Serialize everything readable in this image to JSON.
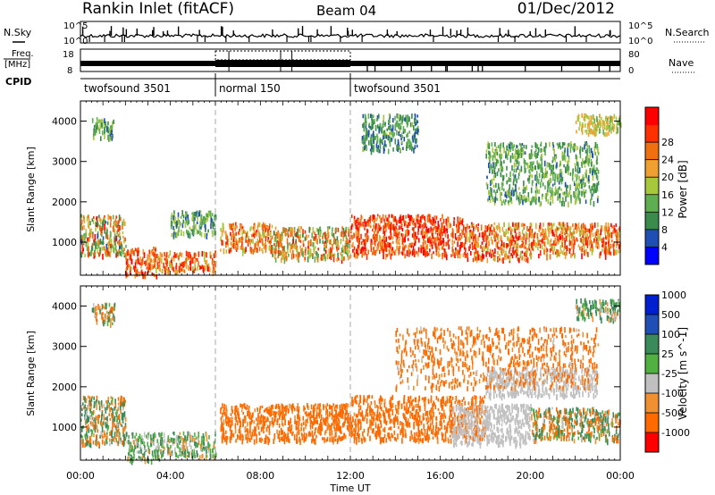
{
  "header": {
    "station": "Rankin Inlet (fitACF)",
    "beam": "Beam 04",
    "date": "01/Dec/2012"
  },
  "summary": {
    "nsky_label": "N.Sky",
    "nsearch_label": "N.Search",
    "count_ticks": [
      "10^5",
      "10^0"
    ],
    "freq_label_1": "Freq.",
    "freq_label_2": "[MHz]",
    "freq_ticks": [
      "18",
      "8"
    ],
    "nave_label": "Nave",
    "nave_ticks": [
      "80",
      "0"
    ],
    "cpid_label": "CPID",
    "cpid_segments": [
      {
        "label": "twofsound 3501",
        "start_hour": 0,
        "end_hour": 6
      },
      {
        "label": "normal 150",
        "start_hour": 6,
        "end_hour": 12
      },
      {
        "label": "twofsound 3501",
        "start_hour": 12,
        "end_hour": 24
      }
    ],
    "freq_high_mhz": 12,
    "freq_low_mhz": 10,
    "nave_normal": 36
  },
  "colors": {
    "power": [
      "#0000ff",
      "#1f4fb4",
      "#3b8c4c",
      "#5fae4f",
      "#a8c83c",
      "#f0a030",
      "#f07010",
      "#ff3000",
      "#ff0000"
    ],
    "velocity": [
      "#ff0000",
      "#ff6a00",
      "#f09030",
      "#c0c0c0",
      "#50b040",
      "#3a8a5a",
      "#1f4fb4",
      "#0020d0"
    ],
    "ground_scatter": "#b8b8b8"
  },
  "chart_data": [
    {
      "type": "heatmap",
      "name": "power",
      "xlabel": "",
      "ylabel": "Slant Range [km]",
      "xlim": [
        0,
        24
      ],
      "ylim": [
        180,
        4500
      ],
      "yticks": [
        1000,
        2000,
        3000,
        4000
      ],
      "colorbar_label": "Power [dB]",
      "colorbar_ticks": [
        4,
        8,
        12,
        16,
        20,
        24,
        28
      ],
      "colorbar_range": [
        0,
        30
      ],
      "scatter_regions": [
        {
          "x": [
            0.0,
            2.0
          ],
          "y": [
            700,
            1700
          ],
          "v": [
            6,
            28
          ]
        },
        {
          "x": [
            2.0,
            3.5
          ],
          "y": [
            200,
            900
          ],
          "v": [
            16,
            30
          ]
        },
        {
          "x": [
            3.5,
            6.0
          ],
          "y": [
            300,
            800
          ],
          "v": [
            14,
            28
          ]
        },
        {
          "x": [
            4.0,
            6.0
          ],
          "y": [
            1200,
            1800
          ],
          "v": [
            4,
            16
          ]
        },
        {
          "x": [
            6.2,
            8.5
          ],
          "y": [
            800,
            1500
          ],
          "v": [
            14,
            28
          ]
        },
        {
          "x": [
            8.5,
            12.0
          ],
          "y": [
            600,
            1400
          ],
          "v": [
            8,
            28
          ]
        },
        {
          "x": [
            12.0,
            17.0
          ],
          "y": [
            700,
            1700
          ],
          "v": [
            18,
            30
          ]
        },
        {
          "x": [
            17.0,
            20.0
          ],
          "y": [
            600,
            1500
          ],
          "v": [
            14,
            30
          ]
        },
        {
          "x": [
            20.0,
            24.0
          ],
          "y": [
            700,
            1500
          ],
          "v": [
            14,
            28
          ]
        },
        {
          "x": [
            0.5,
            1.5
          ],
          "y": [
            3600,
            4100
          ],
          "v": [
            6,
            16
          ]
        },
        {
          "x": [
            12.5,
            15.0
          ],
          "y": [
            3300,
            4200
          ],
          "v": [
            4,
            14
          ]
        },
        {
          "x": [
            18.0,
            23.0
          ],
          "y": [
            2000,
            3500
          ],
          "v": [
            6,
            16
          ]
        },
        {
          "x": [
            22.0,
            24.0
          ],
          "y": [
            3700,
            4200
          ],
          "v": [
            12,
            20
          ]
        }
      ]
    },
    {
      "type": "heatmap",
      "name": "velocity",
      "xlabel": "Time UT",
      "ylabel": "Slant Range [km]",
      "xlim": [
        0,
        24
      ],
      "ylim": [
        180,
        4500
      ],
      "xticks": [
        "00:00",
        "04:00",
        "08:00",
        "12:00",
        "16:00",
        "20:00",
        "00:00"
      ],
      "yticks": [
        1000,
        2000,
        3000,
        4000
      ],
      "colorbar_label": "Velocity [m s^-1]",
      "colorbar_ticks": [
        "1000",
        "500",
        "100",
        "25",
        "-25",
        "-100",
        "-500",
        "-1000"
      ],
      "scatter_regions": [
        {
          "x": [
            0.0,
            2.0
          ],
          "y": [
            600,
            1800
          ],
          "v": [
            -200,
            300
          ]
        },
        {
          "x": [
            2.0,
            3.5
          ],
          "y": [
            200,
            900
          ],
          "v": [
            -50,
            200
          ]
        },
        {
          "x": [
            3.5,
            6.0
          ],
          "y": [
            300,
            900
          ],
          "v": [
            -100,
            200
          ]
        },
        {
          "x": [
            6.2,
            12.0
          ],
          "y": [
            700,
            1600
          ],
          "v": [
            -400,
            -50
          ]
        },
        {
          "x": [
            12.0,
            18.0
          ],
          "y": [
            700,
            1800
          ],
          "v": [
            -500,
            -50
          ]
        },
        {
          "x": [
            16.5,
            20.0
          ],
          "y": [
            600,
            1600
          ],
          "v": [
            -20,
            20
          ]
        },
        {
          "x": [
            18.0,
            23.0
          ],
          "y": [
            1800,
            2500
          ],
          "v": [
            -20,
            20
          ]
        },
        {
          "x": [
            20.0,
            24.0
          ],
          "y": [
            700,
            1500
          ],
          "v": [
            -300,
            300
          ]
        },
        {
          "x": [
            0.5,
            1.5
          ],
          "y": [
            3600,
            4100
          ],
          "v": [
            -200,
            200
          ]
        },
        {
          "x": [
            14.0,
            23.0
          ],
          "y": [
            2000,
            3500
          ],
          "v": [
            -400,
            0
          ]
        },
        {
          "x": [
            22.0,
            24.0
          ],
          "y": [
            3700,
            4200
          ],
          "v": [
            -100,
            300
          ]
        }
      ]
    }
  ]
}
